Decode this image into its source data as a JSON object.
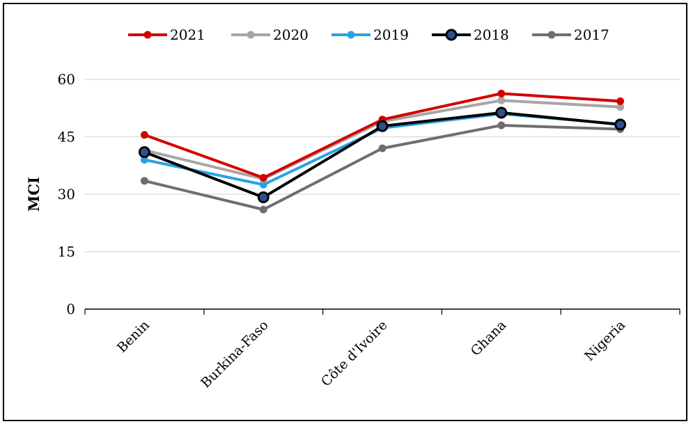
{
  "chart_data": {
    "type": "line",
    "categories": [
      "Benin",
      "Burkina-Faso",
      "Côte d'Ivoire",
      "Ghana",
      "Nigeria"
    ],
    "series": [
      {
        "name": "2021",
        "color": "#d40000",
        "values": [
          45.5,
          34.3,
          49.5,
          56.3,
          54.3
        ]
      },
      {
        "name": "2020",
        "color": "#a6a6a6",
        "values": [
          41.5,
          34.0,
          49.0,
          54.5,
          52.8
        ]
      },
      {
        "name": "2019",
        "color": "#29a3e0",
        "values": [
          39.0,
          32.5,
          47.3,
          51.0,
          48.3
        ]
      },
      {
        "name": "2018",
        "color": "#000000",
        "values": [
          41.0,
          29.2,
          47.8,
          51.3,
          48.2
        ]
      },
      {
        "name": "2017",
        "color": "#6e6e6e",
        "values": [
          33.5,
          26.0,
          42.0,
          48.0,
          47.0
        ]
      }
    ],
    "title": "",
    "xlabel": "",
    "ylabel": "MCI",
    "ylim": [
      0,
      60
    ],
    "yticks": [
      "0",
      "15",
      "30",
      "45",
      "60"
    ],
    "grid": true,
    "legend_position": "top"
  }
}
